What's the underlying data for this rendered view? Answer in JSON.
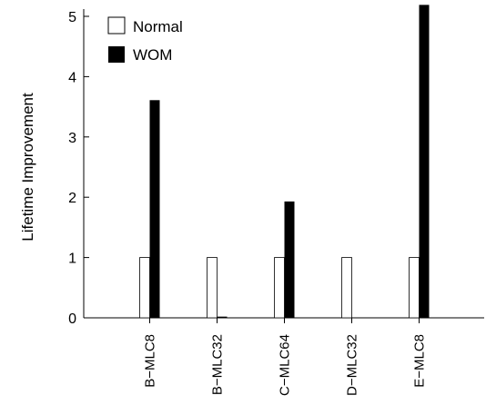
{
  "chart_data": {
    "type": "bar",
    "ylabel": "Lifetime Improvement",
    "xlabel": "",
    "title": "",
    "categories": [
      "B−MLC8",
      "B−MLC32",
      "C−MLC64",
      "D−MLC32",
      "E−MLC8"
    ],
    "ylim": [
      0,
      5
    ],
    "yticks": [
      0,
      1,
      2,
      3,
      4,
      5
    ],
    "series": [
      {
        "name": "Normal",
        "color": "#ffffff",
        "values": [
          1,
          1,
          1,
          1,
          1
        ]
      },
      {
        "name": "WOM",
        "color": "#000000",
        "values": [
          3.61,
          0.02,
          1.93,
          0.0,
          5.19
        ]
      }
    ],
    "legend": "top-left",
    "grid": false
  }
}
